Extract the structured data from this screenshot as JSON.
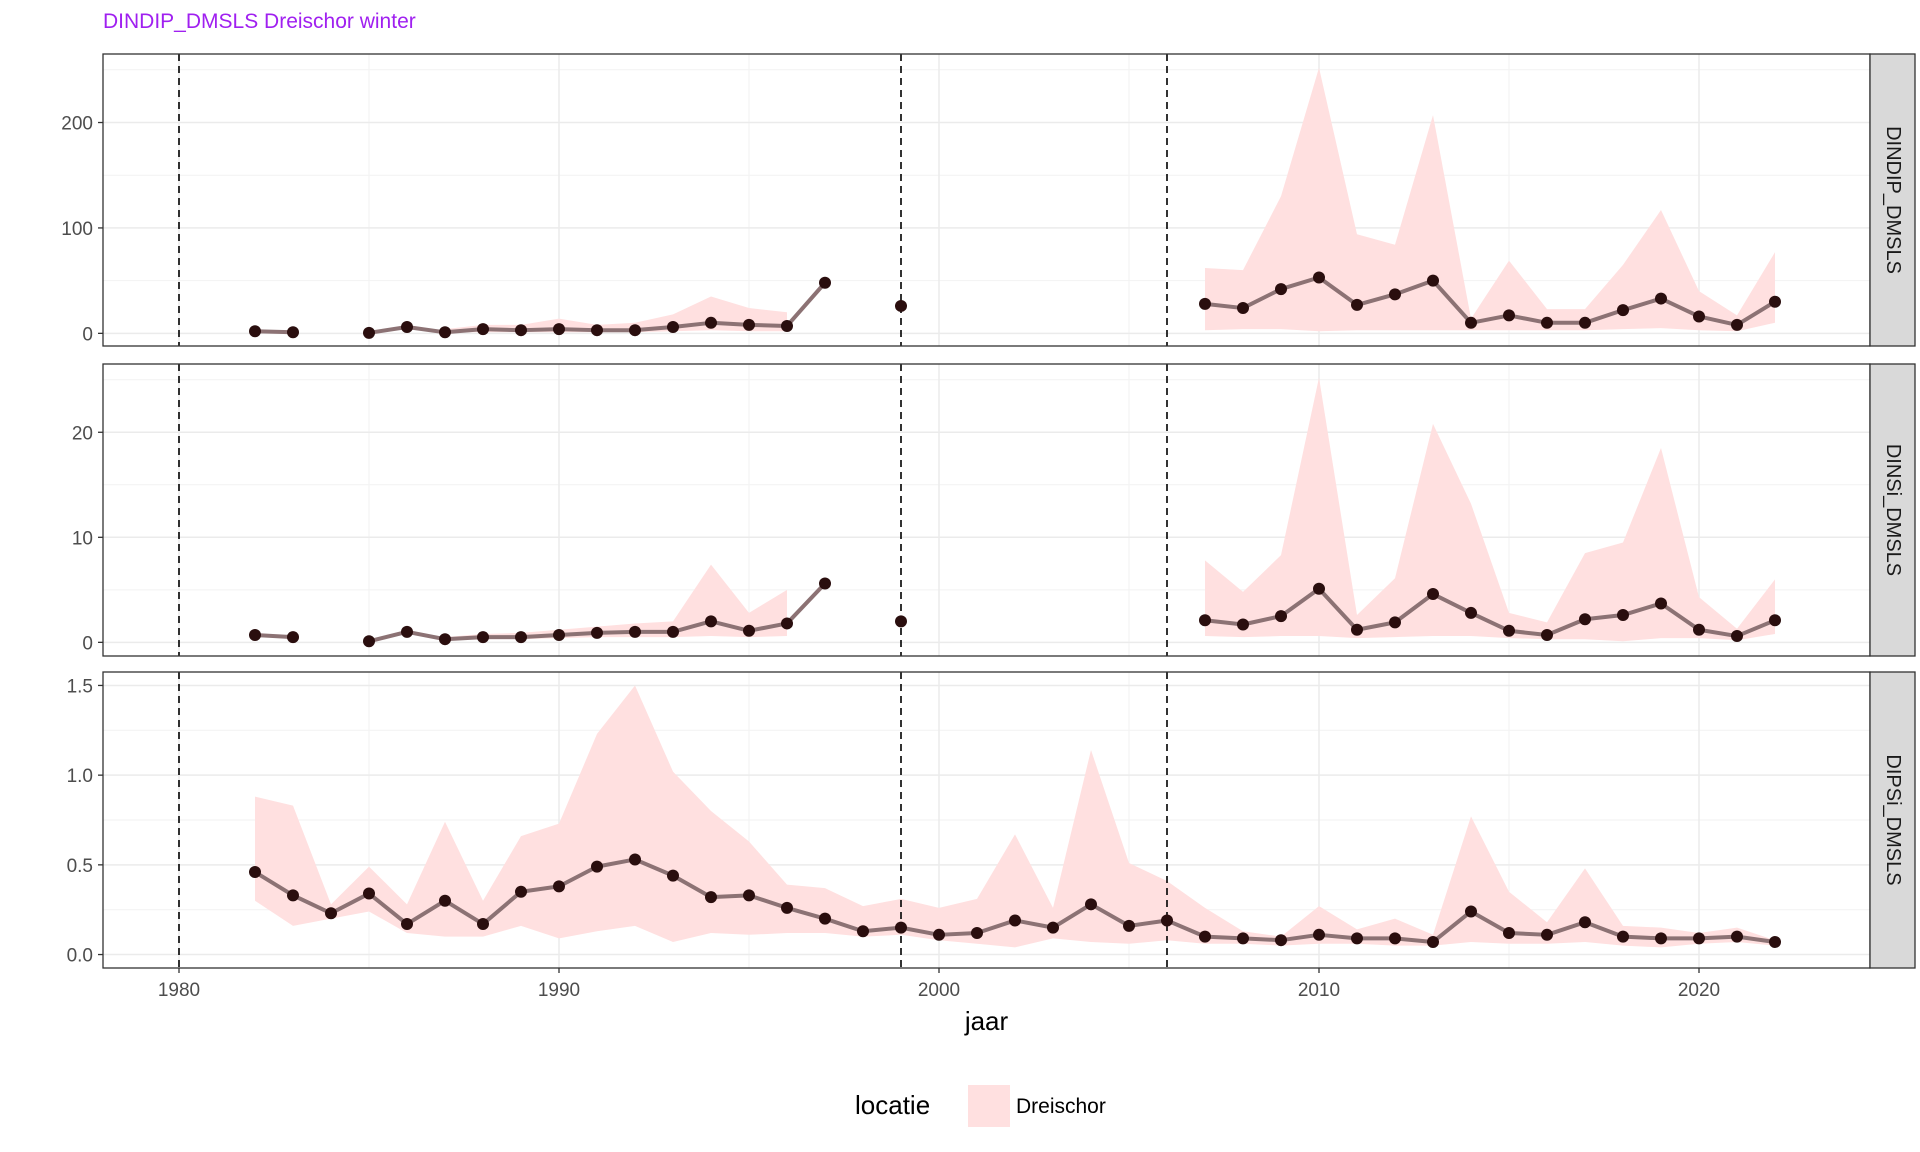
{
  "chart_data": {
    "type": "line",
    "title": "DINDIP_DMSLS Dreischor winter",
    "xlabel": "jaar",
    "xlim": [
      1978,
      2024.5
    ],
    "x_ticks": [
      1980,
      1990,
      2000,
      2010,
      2020
    ],
    "vlines": [
      1980,
      1999,
      2006
    ],
    "grid": true,
    "legend": {
      "title": "locatie",
      "entries": [
        "Dreischor"
      ],
      "position": "bottom"
    },
    "colors": {
      "ribbon": "#FFE0E0",
      "line": "#8C7274",
      "point": "#2A0E0E",
      "title": "#A020F0",
      "strip": "#D9D9D9",
      "grid": "#EBEBEB"
    },
    "panels": [
      {
        "strip": "DINDIP_DMSLS",
        "ylim": [
          -12,
          265
        ],
        "y_ticks": [
          0,
          100,
          200
        ],
        "y_tick_labels": [
          "0",
          "100",
          "200"
        ],
        "segments": [
          {
            "x": [
              1982,
              1983
            ],
            "y": [
              2,
              1
            ],
            "lower": [
              null,
              null
            ],
            "upper": [
              null,
              null
            ]
          },
          {
            "x": [
              1985,
              1986,
              1987,
              1988,
              1989,
              1990,
              1991,
              1992,
              1993,
              1994,
              1995,
              1996,
              1997
            ],
            "y": [
              0.5,
              6,
              1,
              4,
              3,
              4,
              3,
              3,
              6,
              10,
              8,
              7,
              48
            ],
            "lower": [
              null,
              null,
              1,
              1,
              1,
              1,
              1,
              1,
              2,
              3,
              2,
              2,
              null
            ],
            "upper": [
              null,
              null,
              4,
              8,
              8,
              14,
              8,
              10,
              18,
              35,
              24,
              20,
              null
            ]
          },
          {
            "x": [
              1999
            ],
            "y": [
              26
            ],
            "lower": [
              null
            ],
            "upper": [
              null
            ]
          },
          {
            "x": [
              2007,
              2008,
              2009,
              2010,
              2011,
              2012,
              2013,
              2014,
              2015,
              2016,
              2017,
              2018,
              2019,
              2020,
              2021,
              2022
            ],
            "y": [
              28,
              24,
              42,
              53,
              27,
              37,
              50,
              10,
              17,
              10,
              10,
              22,
              33,
              16,
              8,
              30
            ],
            "lower": [
              3,
              4,
              4,
              2,
              3,
              3,
              3,
              3,
              3,
              3,
              3,
              4,
              5,
              3,
              2,
              10
            ],
            "upper": [
              62,
              60,
              130,
              252,
              94,
              84,
              207,
              14,
              69,
              23,
              23,
              65,
              117,
              40,
              17,
              77
            ]
          }
        ]
      },
      {
        "strip": "DINSi_DMSLS",
        "ylim": [
          -1.3,
          26.5
        ],
        "y_ticks": [
          0,
          10,
          20
        ],
        "y_tick_labels": [
          "0",
          "10",
          "20"
        ],
        "segments": [
          {
            "x": [
              1982,
              1983
            ],
            "y": [
              0.7,
              0.5
            ],
            "lower": [
              null,
              null
            ],
            "upper": [
              null,
              null
            ]
          },
          {
            "x": [
              1985,
              1986,
              1987,
              1988,
              1989,
              1990,
              1991,
              1992,
              1993,
              1994,
              1995,
              1996,
              1997
            ],
            "y": [
              0.1,
              1.0,
              0.3,
              0.5,
              0.5,
              0.7,
              0.9,
              1.0,
              1.0,
              2.0,
              1.1,
              1.8,
              5.6
            ],
            "lower": [
              null,
              null,
              0.2,
              0.3,
              0.3,
              0.4,
              0.5,
              0.5,
              0.5,
              0.6,
              0.5,
              0.6,
              null
            ],
            "upper": [
              null,
              null,
              0.5,
              0.8,
              0.9,
              1.2,
              1.5,
              1.8,
              2.0,
              7.4,
              2.8,
              5.0,
              null
            ]
          },
          {
            "x": [
              1999
            ],
            "y": [
              2.0
            ],
            "lower": [
              null
            ],
            "upper": [
              null
            ]
          },
          {
            "x": [
              2007,
              2008,
              2009,
              2010,
              2011,
              2012,
              2013,
              2014,
              2015,
              2016,
              2017,
              2018,
              2019,
              2020,
              2021,
              2022
            ],
            "y": [
              2.1,
              1.7,
              2.5,
              5.1,
              1.2,
              1.9,
              4.6,
              2.8,
              1.1,
              0.7,
              2.2,
              2.6,
              3.7,
              1.2,
              0.6,
              2.1
            ],
            "lower": [
              0.6,
              0.5,
              0.6,
              0.6,
              0.4,
              0.5,
              0.6,
              0.6,
              0.4,
              0.3,
              0.3,
              0.1,
              0.4,
              0.4,
              0.2,
              0.8
            ],
            "upper": [
              7.8,
              4.8,
              8.3,
              25.2,
              2.6,
              6.1,
              20.8,
              13.2,
              2.8,
              1.9,
              8.5,
              9.5,
              18.5,
              4.3,
              1.3,
              6.0
            ]
          }
        ]
      },
      {
        "strip": "DIPSi_DMSLS",
        "ylim": [
          -0.075,
          1.575
        ],
        "y_ticks": [
          0,
          0.5,
          1.0,
          1.5
        ],
        "y_tick_labels": [
          "0.0",
          "0.5",
          "1.0",
          "1.5"
        ],
        "segments": [
          {
            "x": [
              1982,
              1983,
              1984,
              1985,
              1986,
              1987,
              1988,
              1989,
              1990,
              1991,
              1992,
              1993,
              1994,
              1995,
              1996,
              1997,
              1998,
              1999,
              2000,
              2001,
              2002,
              2003,
              2004,
              2005,
              2006,
              2007,
              2008,
              2009,
              2010,
              2011,
              2012,
              2013,
              2014,
              2015,
              2016,
              2017,
              2018,
              2019,
              2020,
              2021,
              2022
            ],
            "y": [
              0.46,
              0.33,
              0.23,
              0.34,
              0.17,
              0.3,
              0.17,
              0.35,
              0.38,
              0.49,
              0.53,
              0.44,
              0.32,
              0.33,
              0.26,
              0.2,
              0.13,
              0.15,
              0.11,
              0.12,
              0.19,
              0.15,
              0.28,
              0.16,
              0.19,
              0.1,
              0.09,
              0.08,
              0.11,
              0.09,
              0.09,
              0.07,
              0.24,
              0.12,
              0.11,
              0.18,
              0.1,
              0.09,
              0.09,
              0.1,
              0.07
            ],
            "lower": [
              0.3,
              0.16,
              0.2,
              0.24,
              0.12,
              0.1,
              0.1,
              0.16,
              0.09,
              0.13,
              0.16,
              0.07,
              0.12,
              0.11,
              0.12,
              0.12,
              0.1,
              0.11,
              0.08,
              0.06,
              0.04,
              0.09,
              0.07,
              0.06,
              0.08,
              0.06,
              0.06,
              0.05,
              0.06,
              0.06,
              0.05,
              0.05,
              0.07,
              0.06,
              0.06,
              0.07,
              0.05,
              0.04,
              0.06,
              0.07,
              0.05
            ],
            "upper": [
              0.88,
              0.83,
              0.28,
              0.49,
              0.28,
              0.74,
              0.3,
              0.66,
              0.73,
              1.23,
              1.5,
              1.02,
              0.8,
              0.63,
              0.39,
              0.37,
              0.27,
              0.31,
              0.26,
              0.31,
              0.67,
              0.26,
              1.14,
              0.51,
              0.41,
              0.26,
              0.13,
              0.1,
              0.27,
              0.14,
              0.2,
              0.11,
              0.77,
              0.35,
              0.18,
              0.48,
              0.16,
              0.15,
              0.12,
              0.15,
              0.08
            ]
          }
        ]
      }
    ]
  }
}
